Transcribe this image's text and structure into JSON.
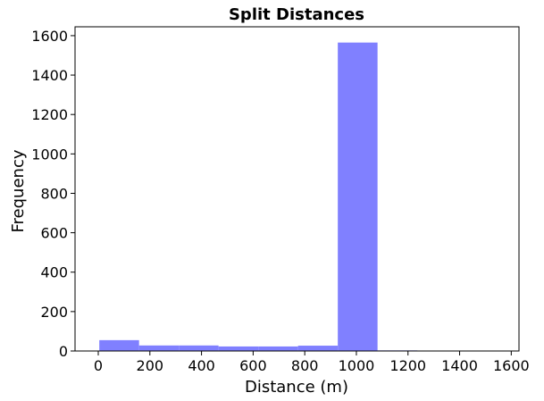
{
  "chart_data": {
    "type": "bar",
    "title": "Split Distances",
    "xlabel": "Distance (m)",
    "ylabel": "Frequency",
    "xlim": [
      -90,
      1630
    ],
    "ylim": [
      0,
      1645
    ],
    "xticks": [
      0,
      200,
      400,
      600,
      800,
      1000,
      1200,
      1400,
      1600
    ],
    "yticks": [
      0,
      200,
      400,
      600,
      800,
      1000,
      1200,
      1400,
      1600
    ],
    "grid": false,
    "bar_color": "#8080ff",
    "bins": [
      {
        "x0": 4,
        "x1": 158,
        "value": 55
      },
      {
        "x0": 158,
        "x1": 312,
        "value": 28
      },
      {
        "x0": 312,
        "x1": 466,
        "value": 28
      },
      {
        "x0": 466,
        "x1": 620,
        "value": 23
      },
      {
        "x0": 620,
        "x1": 774,
        "value": 23
      },
      {
        "x0": 774,
        "x1": 928,
        "value": 27
      },
      {
        "x0": 928,
        "x1": 1082,
        "value": 1565
      },
      {
        "x0": 1082,
        "x1": 1236,
        "value": 3
      },
      {
        "x0": 1236,
        "x1": 1390,
        "value": 1
      },
      {
        "x0": 1390,
        "x1": 1544,
        "value": 1
      }
    ]
  }
}
